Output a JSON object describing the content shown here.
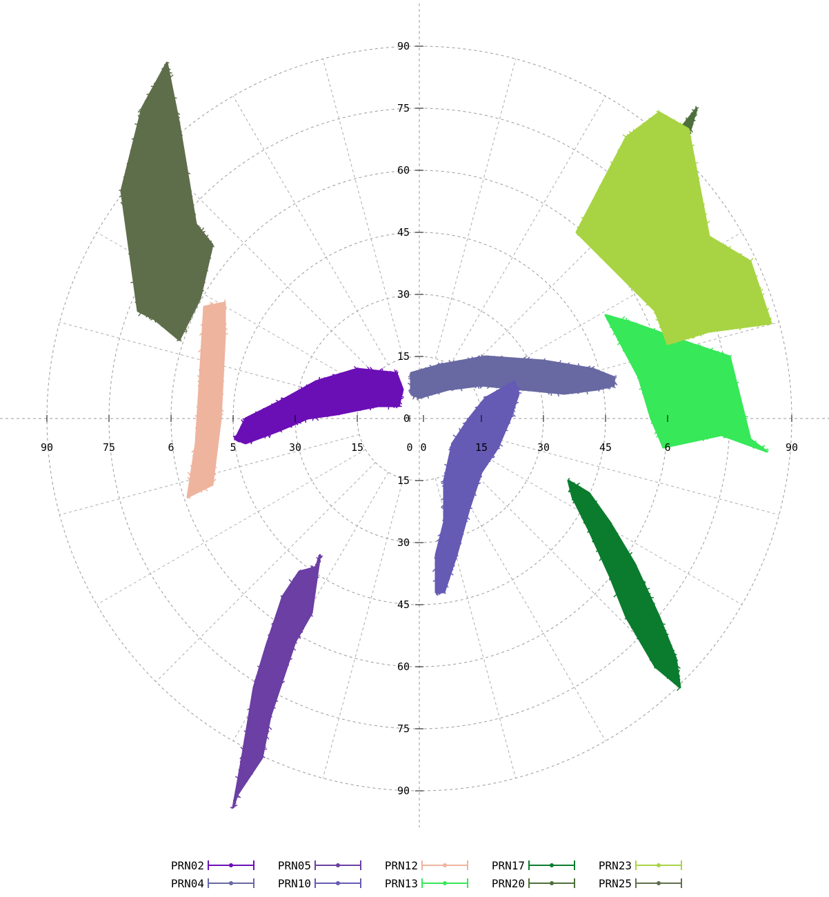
{
  "chart_data": {
    "type": "scatter",
    "projection": "polar",
    "axis_range": [
      0,
      90
    ],
    "rings": [
      15,
      30,
      45,
      60,
      75,
      90
    ],
    "grid": true,
    "legend_position": "bottom",
    "tick_labels_x": [
      "90",
      "75",
      "6",
      "5",
      "30",
      "15",
      "0",
      "0",
      "15",
      "30",
      "45",
      "6",
      "90"
    ],
    "tick_labels_y_top": [
      "90",
      "75",
      "60",
      "45",
      "30",
      "15"
    ],
    "tick_labels_y_bottom": [
      "15",
      "30",
      "45",
      "60",
      "75",
      "90"
    ],
    "series": [
      {
        "name": "PRN02",
        "color": "#6a0fb5",
        "region": [
          [
            -44.5,
            -5
          ],
          [
            -42,
            0
          ],
          [
            -34,
            4
          ],
          [
            -25,
            9
          ],
          [
            -15,
            12
          ],
          [
            -5.5,
            11
          ],
          [
            -4,
            7
          ],
          [
            -5,
            3
          ],
          [
            -10,
            3
          ],
          [
            -20,
            1
          ],
          [
            -27,
            0
          ],
          [
            -34,
            -3
          ],
          [
            -42,
            -6
          ]
        ]
      },
      {
        "name": "PRN04",
        "color": "#6868a3",
        "region": [
          [
            -2,
            11
          ],
          [
            5,
            13
          ],
          [
            16,
            15
          ],
          [
            30,
            14
          ],
          [
            42,
            12
          ],
          [
            47,
            10
          ],
          [
            47,
            8
          ],
          [
            43,
            7
          ],
          [
            35,
            6
          ],
          [
            25,
            7
          ],
          [
            15,
            8
          ],
          [
            7,
            7
          ],
          [
            0,
            5
          ],
          [
            -2,
            6
          ]
        ]
      },
      {
        "name": "PRN05",
        "color": "#6b3fa3",
        "region": [
          [
            -25,
            -36
          ],
          [
            -24,
            -33
          ],
          [
            -26,
            -47
          ],
          [
            -30,
            -54
          ],
          [
            -36,
            -72
          ],
          [
            -38,
            -82
          ],
          [
            -44,
            -91
          ],
          [
            -45,
            -94
          ],
          [
            -43,
            -83
          ],
          [
            -40,
            -65
          ],
          [
            -37,
            -55
          ],
          [
            -33,
            -43
          ],
          [
            -29,
            -37
          ]
        ]
      },
      {
        "name": "PRN10",
        "color": "#655bb4",
        "region": [
          [
            23,
            9
          ],
          [
            24,
            6
          ],
          [
            22,
            0
          ],
          [
            19,
            -7
          ],
          [
            15,
            -13
          ],
          [
            12,
            -22
          ],
          [
            9,
            -33
          ],
          [
            6,
            -42
          ],
          [
            4,
            -42
          ],
          [
            4,
            -33
          ],
          [
            6,
            -25
          ],
          [
            6,
            -15
          ],
          [
            8,
            -6
          ],
          [
            12,
            0
          ],
          [
            16,
            5
          ]
        ]
      },
      {
        "name": "PRN12",
        "color": "#eeb49e",
        "region": [
          [
            -56,
            -19
          ],
          [
            -54,
            -6
          ],
          [
            -53,
            10
          ],
          [
            -52,
            27
          ],
          [
            -47,
            28
          ],
          [
            -47,
            20
          ],
          [
            -48,
            0
          ],
          [
            -50,
            -16
          ]
        ]
      },
      {
        "name": "PRN13",
        "color": "#37e859",
        "region": [
          [
            45,
            25
          ],
          [
            52,
            23
          ],
          [
            66,
            18
          ],
          [
            75,
            15
          ],
          [
            80,
            -5
          ],
          [
            84,
            -8
          ],
          [
            73,
            -4
          ],
          [
            59,
            -7
          ],
          [
            56,
            0
          ],
          [
            53,
            10
          ]
        ]
      },
      {
        "name": "PRN17",
        "color": "#0b7c2e",
        "region": [
          [
            36,
            -15
          ],
          [
            41,
            -18
          ],
          [
            46,
            -25
          ],
          [
            52,
            -35
          ],
          [
            58,
            -48
          ],
          [
            62,
            -58
          ],
          [
            63,
            -65
          ],
          [
            57,
            -60
          ],
          [
            50,
            -48
          ],
          [
            46,
            -38
          ],
          [
            41,
            -27
          ],
          [
            37,
            -19
          ]
        ]
      },
      {
        "name": "PRN20",
        "color": "#4e6e3b",
        "region": [
          [
            58,
            67
          ],
          [
            60,
            65
          ],
          [
            63,
            70
          ],
          [
            67,
            75
          ],
          [
            65,
            68
          ]
        ]
      },
      {
        "name": "PRN23",
        "color": "#a8d444",
        "region": [
          [
            38,
            45
          ],
          [
            50,
            68
          ],
          [
            58,
            74
          ],
          [
            65,
            70
          ],
          [
            70,
            44
          ],
          [
            80,
            38
          ],
          [
            85,
            23
          ],
          [
            70,
            21
          ],
          [
            60,
            18
          ],
          [
            57,
            26
          ]
        ]
      },
      {
        "name": "PRN25",
        "color": "#5e6e4b",
        "region": [
          [
            -68,
            26
          ],
          [
            -72,
            55
          ],
          [
            -67,
            75
          ],
          [
            -61,
            86
          ],
          [
            -58,
            71
          ],
          [
            -54,
            47
          ],
          [
            -50,
            42
          ],
          [
            -53,
            29
          ],
          [
            -58,
            19
          ],
          [
            -64,
            24
          ]
        ]
      }
    ]
  },
  "legend": {
    "rows": [
      [
        {
          "label": "PRN02",
          "color": "#6a0fb5",
          "marker": "dot"
        },
        {
          "label": "PRN05",
          "color": "#6b3fa3",
          "marker": "square"
        },
        {
          "label": "PRN12",
          "color": "#eeb49e",
          "marker": "square"
        },
        {
          "label": "PRN17",
          "color": "#0b7c2e",
          "marker": "plus"
        },
        {
          "label": "PRN23",
          "color": "#a8d444",
          "marker": "triangle"
        }
      ],
      [
        {
          "label": "PRN04",
          "color": "#6868a3",
          "marker": "cross"
        },
        {
          "label": "PRN10",
          "color": "#655bb4",
          "marker": "square"
        },
        {
          "label": "PRN13",
          "color": "#37e859",
          "marker": "plus"
        },
        {
          "label": "PRN20",
          "color": "#4e6e3b",
          "marker": "triangle"
        },
        {
          "label": "PRN25",
          "color": "#5e6e4b",
          "marker": "triangle-down"
        }
      ]
    ]
  }
}
